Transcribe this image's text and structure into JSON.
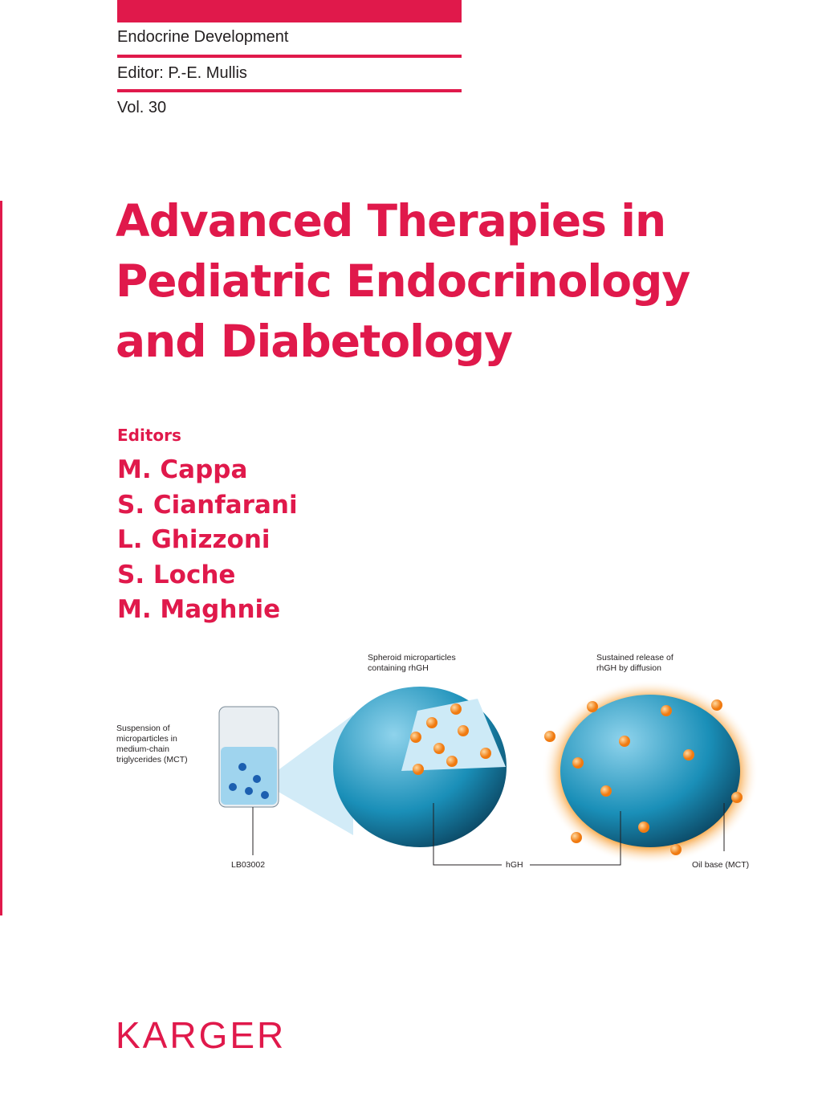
{
  "header": {
    "series": "Endocrine Development",
    "editor": "Editor: P.-E. Mullis",
    "volume": "Vol. 30"
  },
  "title": {
    "lines": [
      "Advanced Therapies in",
      "Pediatric Endocrinology",
      "and Diabetology"
    ]
  },
  "editors": {
    "label": "Editors",
    "names": [
      "M. Cappa",
      "S. Cianfarani",
      "L. Ghizzoni",
      "S. Loche",
      "M. Maghnie"
    ]
  },
  "figure": {
    "suspension": [
      "Suspension of",
      "microparticles in",
      "medium-chain",
      "triglycerides (MCT)"
    ],
    "spheroid": [
      "Spheroid microparticles",
      "containing rhGH"
    ],
    "release": [
      "Sustained release of",
      "rhGH by diffusion"
    ],
    "vial": "LB03002",
    "hgh": "hGH",
    "oil": "Oil base (MCT)"
  },
  "publisher": "KARGER"
}
